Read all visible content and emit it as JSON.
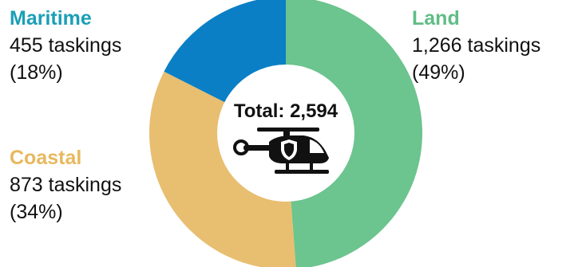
{
  "chart_data": {
    "type": "pie",
    "variant": "donut",
    "total_label": "Total: 2,594",
    "center_icon": "helicopter-shield-icon",
    "slices": [
      {
        "name": "Land",
        "value": 1266,
        "count_text": "1,266 taskings",
        "pct_text": "(49%)",
        "color": "#6cc48e"
      },
      {
        "name": "Coastal",
        "value": 873,
        "count_text": "873 taskings",
        "pct_text": "(34%)",
        "color": "#e8be70"
      },
      {
        "name": "Maritime",
        "value": 455,
        "count_text": "455 taskings",
        "pct_text": "(18%)",
        "color": "#0a7fc6"
      }
    ],
    "name_colors": {
      "Land": "#5fbd85",
      "Coastal": "#e8b85e",
      "Maritime": "#1b9fb6"
    }
  }
}
